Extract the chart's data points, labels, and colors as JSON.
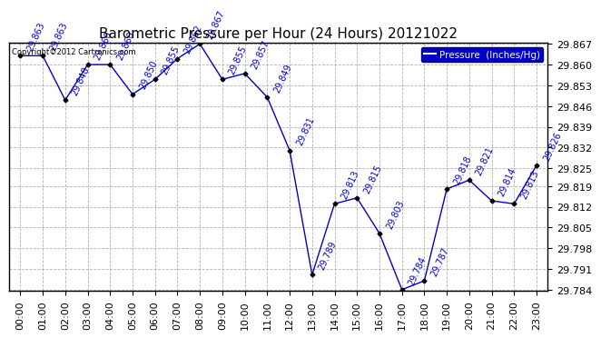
{
  "title": "Barometric Pressure per Hour (24 Hours) 20121022",
  "legend_label": "Pressure  (Inches/Hg)",
  "copyright": "Copyright©2012 Cartronics.com",
  "hours": [
    "00:00",
    "01:00",
    "02:00",
    "03:00",
    "04:00",
    "05:00",
    "06:00",
    "07:00",
    "08:00",
    "09:00",
    "10:00",
    "11:00",
    "12:00",
    "13:00",
    "14:00",
    "15:00",
    "16:00",
    "17:00",
    "18:00",
    "19:00",
    "20:00",
    "21:00",
    "22:00",
    "23:00"
  ],
  "values": [
    29.863,
    29.863,
    29.848,
    29.86,
    29.86,
    29.85,
    29.855,
    29.862,
    29.867,
    29.855,
    29.857,
    29.849,
    29.831,
    29.789,
    29.813,
    29.815,
    29.803,
    29.784,
    29.787,
    29.818,
    29.821,
    29.814,
    29.813,
    29.826
  ],
  "line_color": "#0000cc",
  "marker_color": "#000000",
  "bg_color": "#ffffff",
  "grid_color": "#aaaaaa",
  "ylim_min": 29.784,
  "ylim_max": 29.867,
  "yticks": [
    29.784,
    29.791,
    29.798,
    29.805,
    29.812,
    29.819,
    29.825,
    29.832,
    29.839,
    29.846,
    29.853,
    29.86,
    29.867
  ],
  "title_fontsize": 11,
  "tick_fontsize": 8,
  "annotation_fontsize": 7,
  "annotation_color": "#0000cc",
  "legend_bg": "#0000cc",
  "legend_text_color": "#ffffff"
}
